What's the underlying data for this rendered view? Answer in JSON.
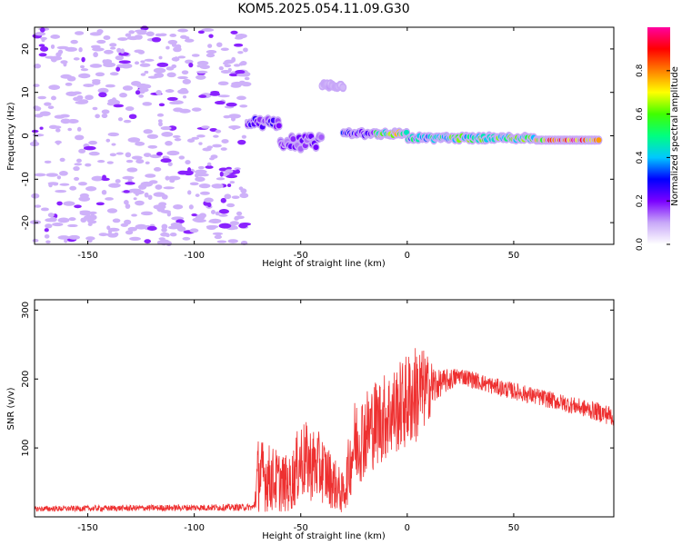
{
  "title": "KOM5.2025.054.11.09.G30",
  "colorbar": {
    "label": "Normalized spectral amplitude",
    "ticks": [
      "0.0",
      "0.2",
      "0.4",
      "0.6",
      "0.8"
    ],
    "range": [
      0,
      1
    ],
    "colormap": [
      "#ffffff",
      "#c8a8f8",
      "#7a00ff",
      "#0000ff",
      "#00c8ff",
      "#00ff80",
      "#40ff00",
      "#ffff00",
      "#ff8000",
      "#ff0000",
      "#ff00a0"
    ]
  },
  "chart_data": [
    {
      "type": "heatmap",
      "xlabel": "Height of straight line (km)",
      "ylabel": "Frequency (Hz)",
      "xlim": [
        -175,
        97
      ],
      "ylim": [
        -25,
        25
      ],
      "xticks": [
        "-150",
        "-100",
        "-50",
        "0",
        "50"
      ],
      "yticks": [
        "-20",
        "-10",
        "0",
        "10",
        "20"
      ],
      "noise_region_x": [
        -175,
        -75
      ],
      "signal_band": [
        {
          "x": [
            -75,
            -60
          ],
          "f": [
            2,
            4
          ],
          "amp": 0.25
        },
        {
          "x": [
            -60,
            -40
          ],
          "f": [
            -3,
            0
          ],
          "amp": 0.2
        },
        {
          "x": [
            -40,
            -30
          ],
          "f": [
            11,
            12
          ],
          "amp": 0.1
        },
        {
          "x": [
            -30,
            -15
          ],
          "f": [
            0,
            1
          ],
          "amp": 0.3
        },
        {
          "x": [
            -15,
            0
          ],
          "f": [
            0,
            1
          ],
          "amp": 0.7
        },
        {
          "x": [
            0,
            20
          ],
          "f": [
            -1,
            0
          ],
          "amp": 0.5
        },
        {
          "x": [
            20,
            60
          ],
          "f": [
            -1,
            0
          ],
          "amp": 0.6
        },
        {
          "x": [
            60,
            90
          ],
          "f": [
            -1,
            -1
          ],
          "amp": 0.9
        }
      ]
    },
    {
      "type": "line",
      "xlabel": "Height of straight line (km)",
      "ylabel": "SNR (v/v)",
      "xlim": [
        -175,
        97
      ],
      "ylim": [
        0,
        315
      ],
      "xticks": [
        "-150",
        "-100",
        "-50",
        "0",
        "50"
      ],
      "yticks": [
        "100",
        "200",
        "300"
      ],
      "color": "#ee3030",
      "envelope": [
        {
          "x": -175,
          "base": 10,
          "spread": 8
        },
        {
          "x": -72,
          "base": 12,
          "spread": 10
        },
        {
          "x": -70,
          "base": 40,
          "spread": 110
        },
        {
          "x": -55,
          "base": 30,
          "spread": 80
        },
        {
          "x": -50,
          "base": 60,
          "spread": 120
        },
        {
          "x": -40,
          "base": 50,
          "spread": 100
        },
        {
          "x": -30,
          "base": 20,
          "spread": 60
        },
        {
          "x": -25,
          "base": 80,
          "spread": 130
        },
        {
          "x": -15,
          "base": 110,
          "spread": 130
        },
        {
          "x": -5,
          "base": 130,
          "spread": 130
        },
        {
          "x": 5,
          "base": 150,
          "spread": 150
        },
        {
          "x": 15,
          "base": 185,
          "spread": 40
        },
        {
          "x": 25,
          "base": 200,
          "spread": 25
        },
        {
          "x": 40,
          "base": 185,
          "spread": 25
        },
        {
          "x": 60,
          "base": 170,
          "spread": 25
        },
        {
          "x": 80,
          "base": 155,
          "spread": 25
        },
        {
          "x": 97,
          "base": 140,
          "spread": 30
        }
      ]
    }
  ]
}
